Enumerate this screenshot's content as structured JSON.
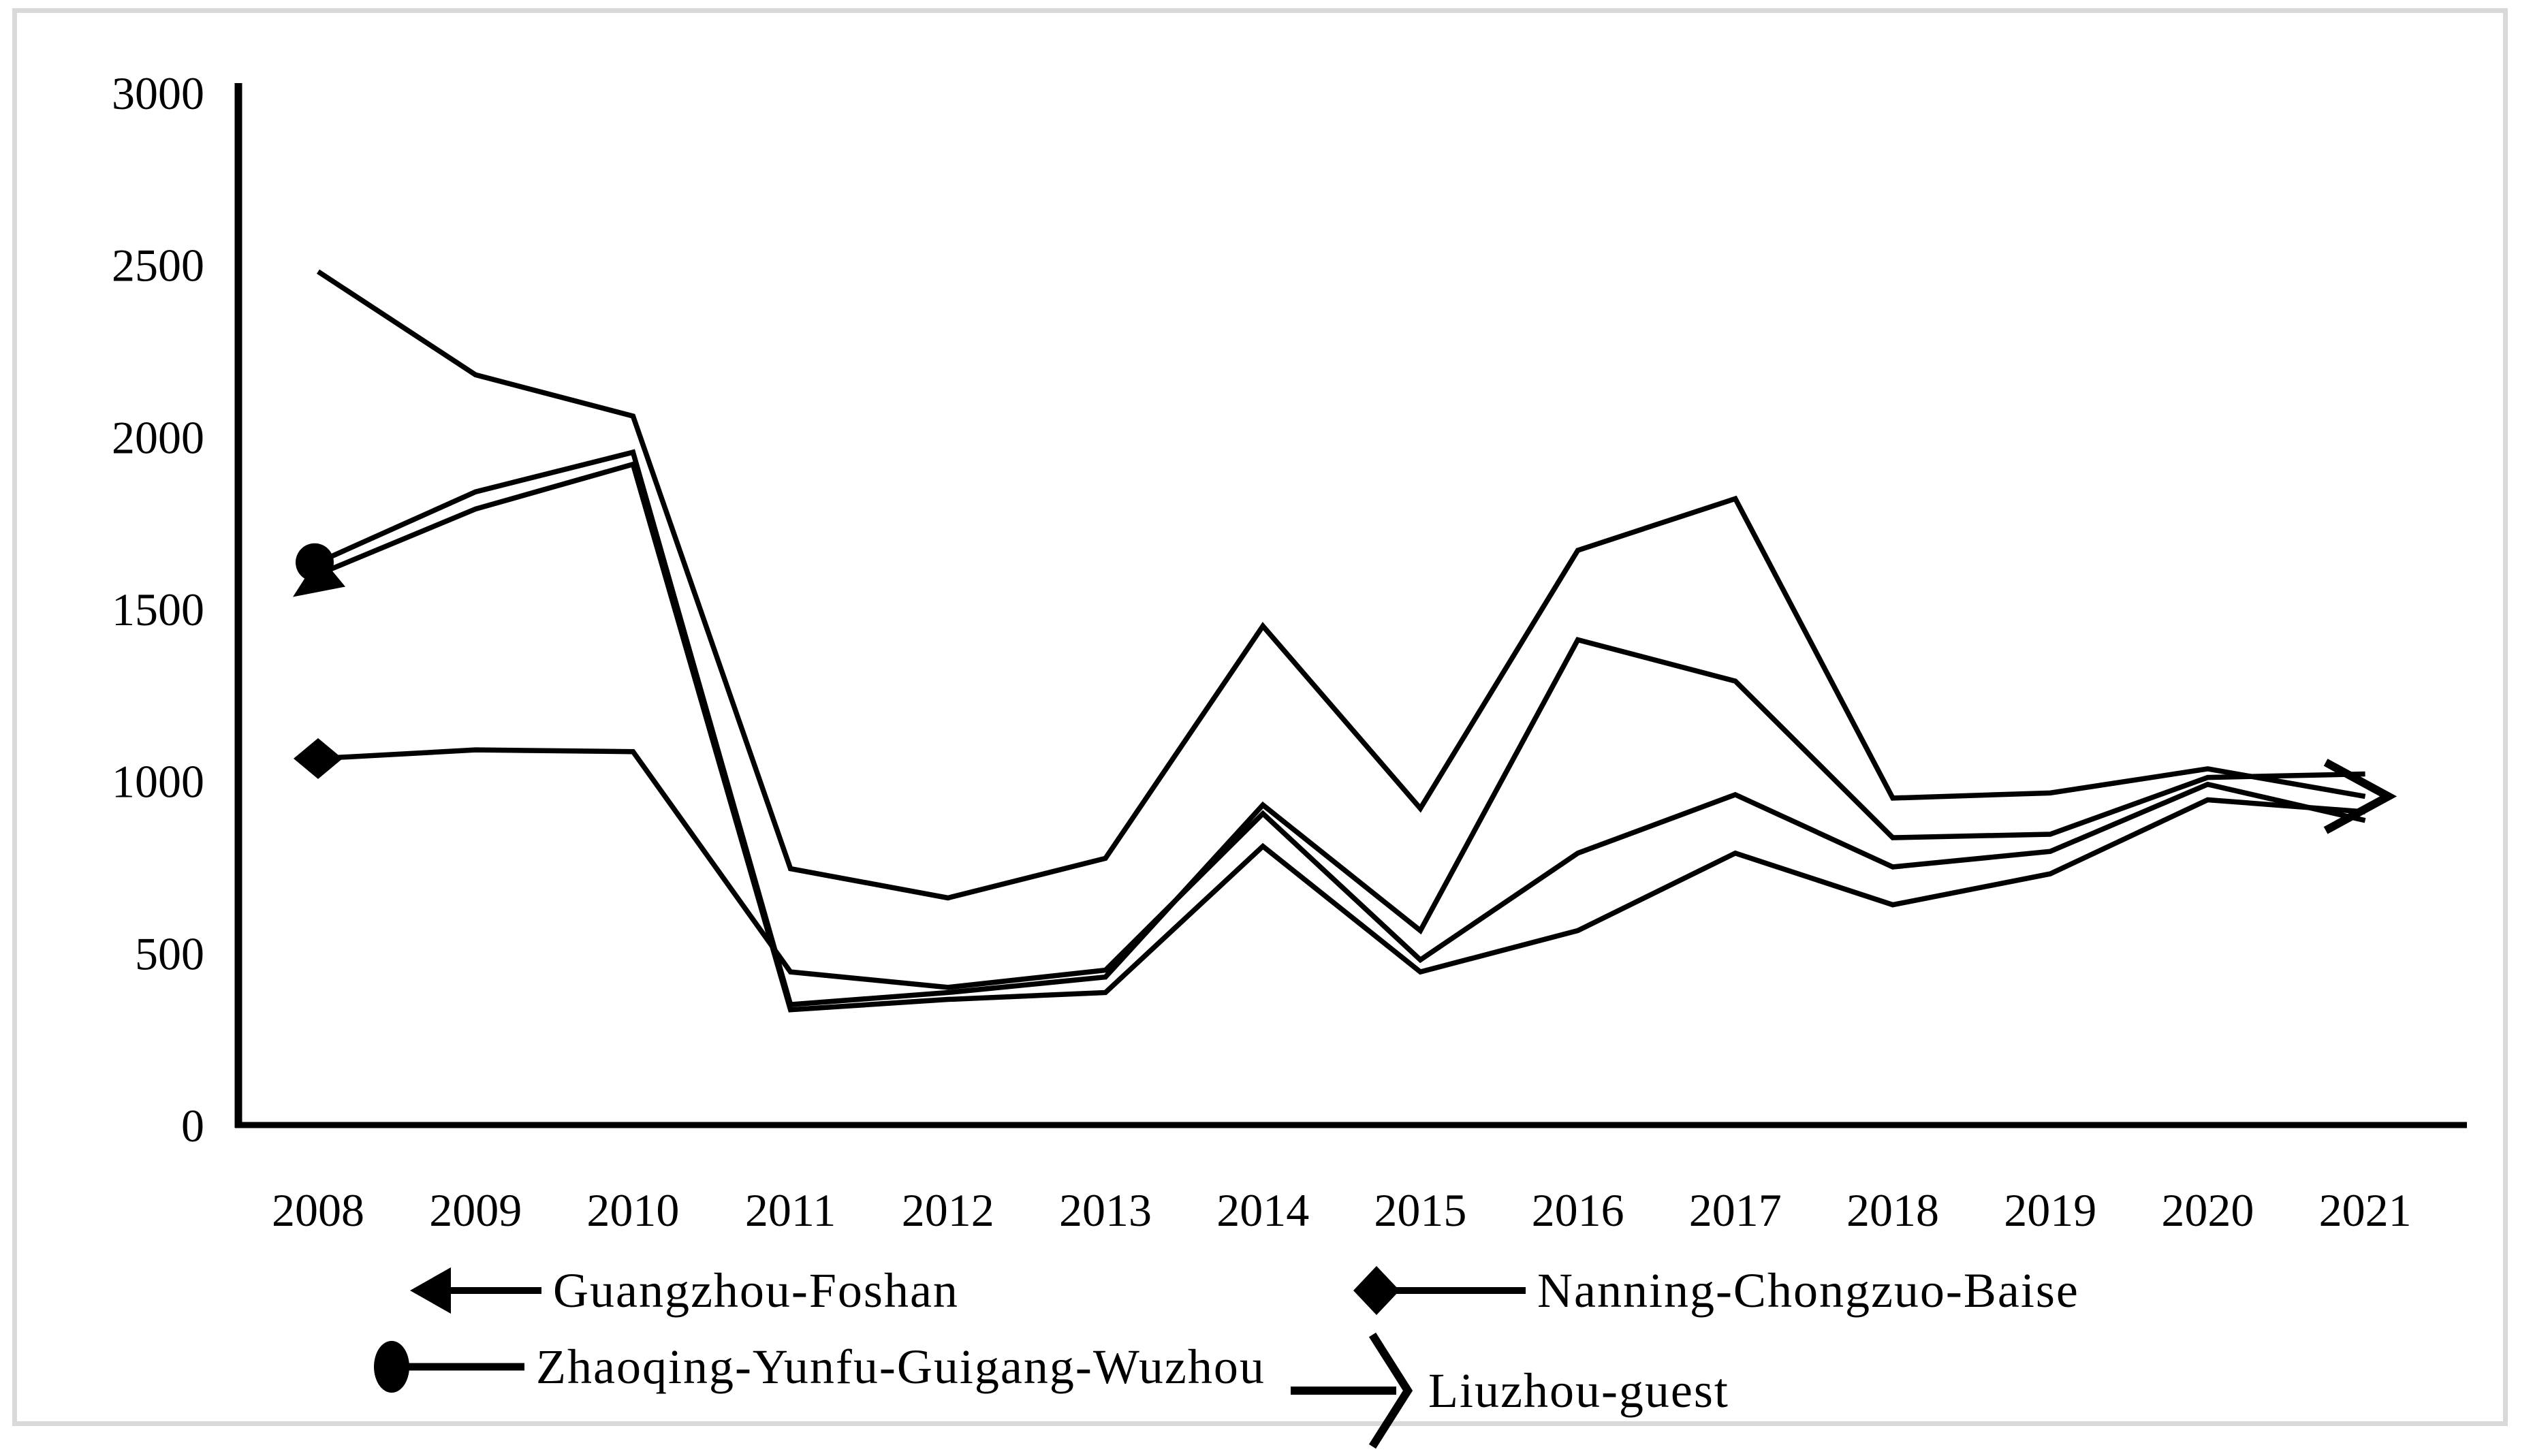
{
  "frame": {
    "border_color": "#d9d9d9",
    "background": "#ffffff"
  },
  "chart_data": {
    "type": "line",
    "title": "",
    "xlabel": "",
    "ylabel": "",
    "x": [
      2008,
      2009,
      2010,
      2011,
      2012,
      2013,
      2014,
      2015,
      2016,
      2017,
      2018,
      2019,
      2020,
      2021
    ],
    "ylim": [
      0,
      3000
    ],
    "yticks": [
      0,
      500,
      1000,
      1500,
      2000,
      2500,
      3000
    ],
    "grid": false,
    "line_color": "#000000",
    "legend_position": "bottom",
    "series": [
      {
        "name": "Guangzhou-Foshan",
        "marker": "left-arrow",
        "marker_at": "first",
        "values": [
          1600,
          1790,
          1920,
          335,
          365,
          385,
          810,
          445,
          565,
          790,
          640,
          730,
          945,
          910
        ]
      },
      {
        "name": "Nanning-Chongzuo-Baise",
        "marker": "diamond",
        "marker_at": "first",
        "values": [
          1065,
          1090,
          1085,
          445,
          400,
          450,
          905,
          480,
          790,
          960,
          750,
          795,
          990,
          885
        ]
      },
      {
        "name": "Zhaoqing-Yunfu-Guigang-Wuzhou",
        "marker": "circle",
        "marker_at": "first",
        "values": [
          1635,
          1840,
          1955,
          350,
          385,
          430,
          930,
          565,
          1410,
          1290,
          835,
          845,
          1010,
          1020
        ]
      },
      {
        "name": "Liuzhou-guest",
        "marker": "right-chevron",
        "marker_at": "last",
        "values": [
          2480,
          2180,
          2060,
          745,
          660,
          775,
          1450,
          920,
          1670,
          1820,
          950,
          965,
          1035,
          955
        ]
      }
    ]
  }
}
